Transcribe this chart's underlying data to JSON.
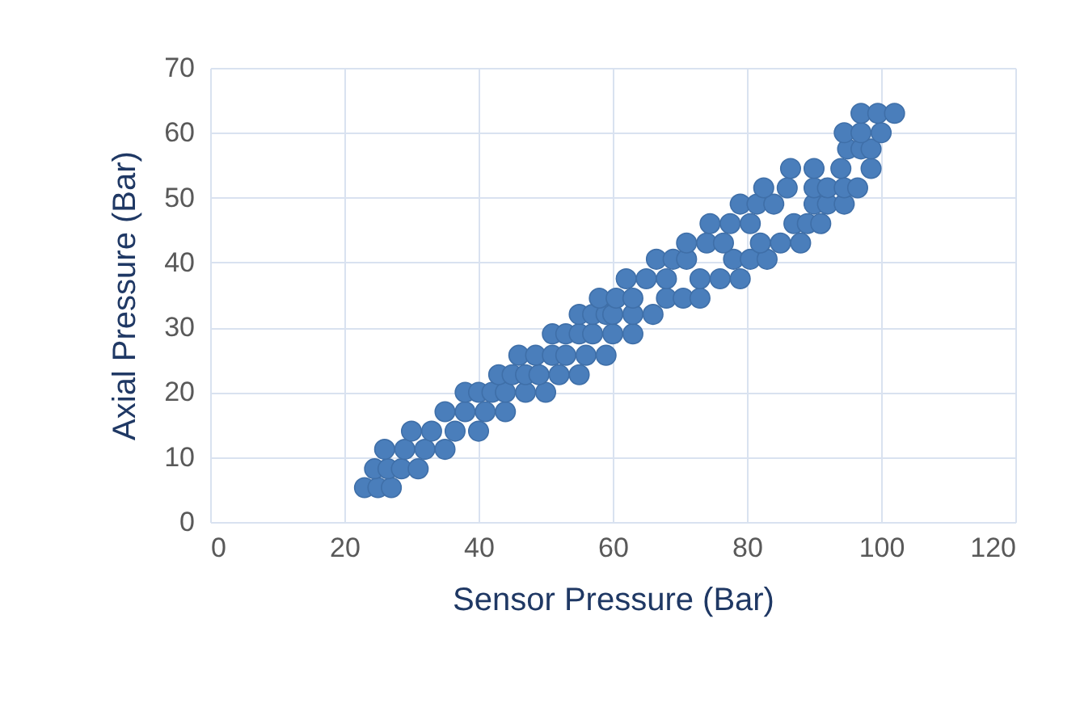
{
  "chart_data": {
    "type": "scatter",
    "xlabel": "Sensor Pressure (Bar)",
    "ylabel": "Axial Pressure (Bar)",
    "xlim": [
      0,
      120
    ],
    "xticks": [
      0,
      20,
      40,
      60,
      80,
      100,
      120
    ],
    "ylim": [
      0,
      70
    ],
    "yticks": [
      0,
      10,
      20,
      30,
      40,
      50,
      60,
      70
    ],
    "grid": true,
    "marker": "circle",
    "series": [
      {
        "color": "#4a7ebb",
        "x": [
          23,
          25,
          27,
          24.5,
          26.5,
          28.5,
          31,
          26,
          29,
          32,
          35,
          30,
          33,
          36.5,
          40,
          35,
          38,
          41,
          44,
          38,
          40,
          42,
          44,
          47,
          50,
          43,
          45,
          47,
          49,
          52,
          55,
          46,
          48.5,
          51,
          53,
          56,
          59,
          51,
          53,
          55,
          57,
          60,
          63,
          55,
          57,
          59,
          60,
          63,
          66,
          58,
          60.5,
          63,
          68,
          70.5,
          73,
          62,
          65,
          68,
          73,
          76,
          79,
          66.5,
          69,
          71,
          78,
          80.5,
          83,
          71,
          74,
          76.5,
          82,
          85,
          88,
          74.5,
          77.5,
          80.5,
          87,
          89,
          91,
          79,
          81.5,
          84,
          90,
          92,
          94.5,
          82.5,
          86,
          90,
          92,
          94.5,
          96.5,
          86.5,
          90,
          94,
          98.5,
          95,
          97,
          98.5,
          94.5,
          97,
          100,
          97,
          99.5,
          102
        ],
        "values": [
          5.3,
          5.3,
          5.3,
          8.2,
          8.2,
          8.2,
          8.2,
          11.2,
          11.2,
          11.2,
          11.2,
          14,
          14,
          14,
          14,
          17,
          17,
          17,
          17,
          20,
          20,
          20,
          20,
          20,
          20,
          22.7,
          22.7,
          22.7,
          22.7,
          22.7,
          22.7,
          25.7,
          25.7,
          25.7,
          25.7,
          25.7,
          25.7,
          29,
          29,
          29,
          29,
          29,
          29,
          32,
          32,
          32,
          32,
          32,
          32,
          34.5,
          34.5,
          34.5,
          34.5,
          34.5,
          34.5,
          37.5,
          37.5,
          37.5,
          37.5,
          37.5,
          37.5,
          40.5,
          40.5,
          40.5,
          40.5,
          40.5,
          40.5,
          43,
          43,
          43,
          43,
          43,
          43,
          46,
          46,
          46,
          46,
          46,
          46,
          49,
          49,
          49,
          49,
          49,
          49,
          51.5,
          51.5,
          51.5,
          51.5,
          51.5,
          51.5,
          54.5,
          54.5,
          54.5,
          54.5,
          57.5,
          57.5,
          57.5,
          60,
          60,
          60,
          63,
          63,
          63
        ]
      }
    ]
  }
}
